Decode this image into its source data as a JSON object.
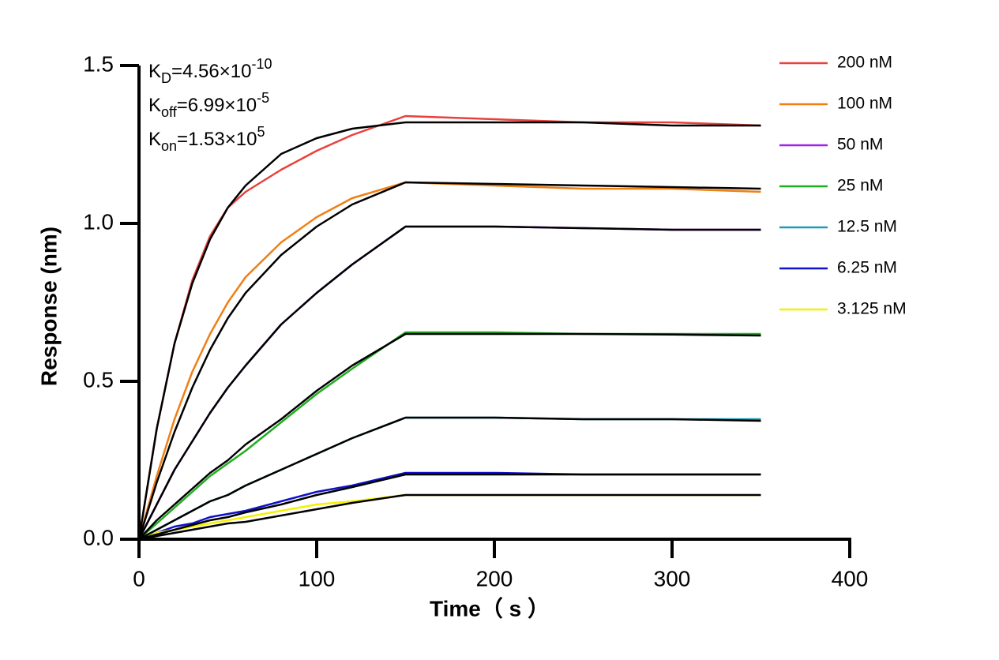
{
  "chart_data": {
    "type": "line",
    "x_label": "Time（ s ）",
    "y_label": "Response (nm)",
    "xlim": [
      0,
      400
    ],
    "xticks": [
      0,
      100,
      200,
      300,
      400
    ],
    "ylim": [
      0,
      1.5
    ],
    "yticks": [
      {
        "value": 0,
        "label": "0.0"
      },
      0.5,
      {
        "value": 1,
        "label": "1.0"
      },
      1.5
    ],
    "annotations": [
      {
        "symbol": "K",
        "subscript": "D",
        "text": "=4.56×10",
        "superscript": "-10"
      },
      {
        "symbol": "K",
        "subscript": "off",
        "text": "=6.99×10",
        "superscript": "-5"
      },
      {
        "symbol": "K",
        "subscript": "on",
        "text": "=1.53×10",
        "superscript": "5"
      }
    ],
    "x": [
      0,
      10,
      20,
      30,
      40,
      50,
      60,
      80,
      100,
      120,
      150,
      200,
      250,
      300,
      350
    ],
    "series": [
      {
        "name": "200 nM",
        "color": "#e8413c",
        "values": [
          0,
          0.35,
          0.62,
          0.82,
          0.96,
          1.05,
          1.1,
          1.17,
          1.23,
          1.28,
          1.34,
          1.33,
          1.32,
          1.32,
          1.31
        ]
      },
      {
        "name": "100 nM",
        "color": "#f07f14",
        "values": [
          0,
          0.2,
          0.38,
          0.53,
          0.65,
          0.75,
          0.83,
          0.94,
          1.02,
          1.08,
          1.13,
          1.12,
          1.11,
          1.11,
          1.1
        ]
      },
      {
        "name": "50 nM",
        "color": "#a020f0",
        "values": [
          0,
          0.11,
          0.22,
          0.31,
          0.4,
          0.48,
          0.55,
          0.68,
          0.78,
          0.87,
          0.99,
          0.99,
          0.985,
          0.98,
          0.98
        ]
      },
      {
        "name": "25 nM",
        "color": "#1fae1f",
        "values": [
          0,
          0.05,
          0.1,
          0.15,
          0.2,
          0.24,
          0.28,
          0.37,
          0.46,
          0.54,
          0.655,
          0.655,
          0.65,
          0.65,
          0.65
        ]
      },
      {
        "name": "12.5 nM",
        "color": "#1f9bb3",
        "values": [
          0,
          0.03,
          0.06,
          0.09,
          0.12,
          0.14,
          0.17,
          0.22,
          0.27,
          0.32,
          0.385,
          0.385,
          0.38,
          0.38,
          0.38
        ]
      },
      {
        "name": "6.25 nM",
        "color": "#1010c8",
        "values": [
          0,
          0.02,
          0.04,
          0.05,
          0.07,
          0.08,
          0.09,
          0.12,
          0.15,
          0.17,
          0.21,
          0.21,
          0.205,
          0.205,
          0.205
        ]
      },
      {
        "name": "3.125 nM",
        "color": "#f5f000",
        "values": [
          0,
          0.02,
          0.03,
          0.04,
          0.05,
          0.06,
          0.07,
          0.09,
          0.11,
          0.12,
          0.14,
          0.14,
          0.14,
          0.14,
          0.14
        ]
      }
    ],
    "fit_series": [
      {
        "color": "#000000",
        "values": [
          0,
          0.35,
          0.62,
          0.81,
          0.95,
          1.05,
          1.12,
          1.22,
          1.27,
          1.3,
          1.32,
          1.32,
          1.32,
          1.31,
          1.31
        ]
      },
      {
        "color": "#000000",
        "values": [
          0,
          0.18,
          0.34,
          0.48,
          0.6,
          0.7,
          0.78,
          0.9,
          0.99,
          1.06,
          1.13,
          1.125,
          1.12,
          1.115,
          1.11
        ]
      },
      {
        "color": "#000000",
        "values": [
          0,
          0.11,
          0.22,
          0.31,
          0.4,
          0.48,
          0.55,
          0.68,
          0.78,
          0.87,
          0.99,
          0.99,
          0.985,
          0.98,
          0.98
        ]
      },
      {
        "color": "#000000",
        "values": [
          0,
          0.06,
          0.11,
          0.16,
          0.21,
          0.25,
          0.3,
          0.38,
          0.47,
          0.55,
          0.65,
          0.65,
          0.65,
          0.648,
          0.645
        ]
      },
      {
        "color": "#000000",
        "values": [
          0,
          0.03,
          0.06,
          0.09,
          0.12,
          0.14,
          0.17,
          0.22,
          0.27,
          0.32,
          0.385,
          0.385,
          0.38,
          0.38,
          0.375
        ]
      },
      {
        "color": "#000000",
        "values": [
          0,
          0.015,
          0.03,
          0.045,
          0.06,
          0.07,
          0.085,
          0.11,
          0.14,
          0.165,
          0.205,
          0.205,
          0.205,
          0.205,
          0.205
        ]
      },
      {
        "color": "#000000",
        "values": [
          0,
          0.01,
          0.02,
          0.03,
          0.04,
          0.05,
          0.055,
          0.075,
          0.095,
          0.115,
          0.14,
          0.14,
          0.14,
          0.14,
          0.14
        ]
      }
    ]
  }
}
